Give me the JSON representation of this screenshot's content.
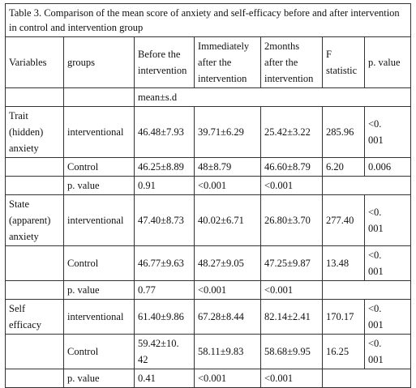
{
  "caption": "Table 3. Comparison of the mean score of anxiety and self-efficacy before and after intervention in control and intervention group",
  "headers": {
    "variables": "Variables",
    "groups": "groups",
    "before": "Before the intervention",
    "immediately": "Immediately after the intervention",
    "two_months": "2months after the intervention",
    "f_stat": "F statistic",
    "p_value": "p. value"
  },
  "unit_row": "mean±s.d",
  "sections": [
    {
      "variable": "Trait\n(hidden)\nanxiety",
      "interventional": {
        "group": "interventional",
        "before": "46.48±7.93",
        "immediately": "39.71±6.29",
        "two_months": "25.42±3.22",
        "f": "285.96",
        "p": "<0.\n001"
      },
      "control": {
        "group": "Control",
        "before": "46.25±8.89",
        "immediately": "48±8.79",
        "two_months": "46.60±8.79",
        "f": "6.20",
        "p": "0.006"
      },
      "pvalue_row": {
        "label": "p. value",
        "before": "0.91",
        "immediately": "<0.001",
        "two_months": "<0.001"
      }
    },
    {
      "variable": "State\n(apparent)\n anxiety",
      "interventional": {
        "group": "interventional",
        "before": "47.40±8.73",
        "immediately": "40.02±6.71",
        "two_months": "26.80±3.70",
        "f": "277.40",
        "p": "<0.\n001"
      },
      "control": {
        "group": "Control",
        "before": "46.77±9.63",
        "immediately": "48.27±9.05",
        "two_months": "47.25±9.87",
        "f": "13.48",
        "p": "<0.\n001"
      },
      "pvalue_row": {
        "label": "p. value",
        "before": "0.77",
        "immediately": "<0.001",
        "two_months": "<0.001"
      }
    },
    {
      "variable": "Self\nefficacy",
      "interventional": {
        "group": "interventional",
        "before": "61.40±9.86",
        "immediately": "67.28±8.44",
        "two_months": "82.14±2.41",
        "f": "170.17",
        "p": "<0.\n001"
      },
      "control": {
        "group": "Control",
        "before": "59.42±10.\n42",
        "immediately": "58.11±9.83",
        "two_months": "58.68±9.95",
        "f": "16.25",
        "p": "<0.\n001"
      },
      "pvalue_row": {
        "label": "p. value",
        "before": "0.41",
        "immediately": "<0.001",
        "two_months": "<0.001"
      }
    }
  ]
}
